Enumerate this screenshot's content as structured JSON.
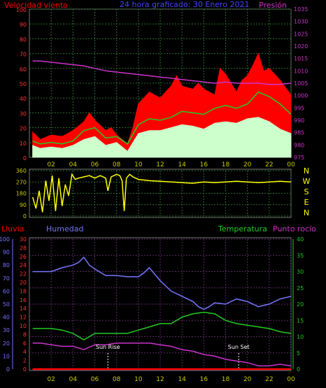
{
  "header": {
    "left_title": "Velocidad viento",
    "center_title": "24 hora graficado:  30 Enero 2021",
    "right_title": "Presión"
  },
  "colors": {
    "background": "#000000",
    "wind_gust": "#ff0000",
    "wind_speed": "#22cc22",
    "wind_avg": "#ccffcc",
    "pressure": "#cc33cc",
    "direction": "#ffff00",
    "humidity": "#7777ff",
    "temperature": "#22cc22",
    "dewpoint": "#cc33cc",
    "rain": "#ff0000",
    "grid_green": "#2e6e2e",
    "grid_purple": "#5a2a66",
    "axis_red": "#ff3333",
    "axis_blue": "#7777ff",
    "axis_green": "#22cc22"
  },
  "chart_data": [
    {
      "type": "line",
      "name": "wind_pressure",
      "x_ticks": [
        "02",
        "04",
        "06",
        "08",
        "10",
        "12",
        "14",
        "16",
        "18",
        "20",
        "22",
        "00"
      ],
      "x_range_hours": [
        0,
        24
      ],
      "left_axis": {
        "label": "Velocidad viento",
        "ticks": [
          "0",
          "10",
          "20",
          "30",
          "40",
          "50",
          "60",
          "70",
          "80",
          "90",
          "100"
        ],
        "ylim": [
          0,
          100
        ]
      },
      "right_axis": {
        "label": "Presión",
        "ticks": [
          "975",
          "980",
          "985",
          "990",
          "995",
          "1000",
          "1005",
          "1010",
          "1015",
          "1020",
          "1025",
          "1030",
          "1035"
        ],
        "ylim": [
          975,
          1035
        ]
      },
      "series": [
        {
          "key": "gust",
          "x": [
            0.3,
            1.0,
            2.0,
            3.0,
            4.0,
            5.0,
            5.5,
            6.0,
            7.0,
            7.5,
            8.0,
            9.0,
            9.5,
            10.0,
            11.0,
            12.0,
            13.0,
            13.5,
            14.0,
            15.0,
            15.5,
            16.0,
            17.0,
            17.5,
            18.0,
            19.0,
            19.5,
            20.0,
            20.5,
            21.0,
            21.5,
            22.0,
            23.0,
            24.0
          ],
          "values": [
            17,
            12,
            15,
            14,
            18,
            24,
            30,
            25,
            18,
            20,
            15,
            9,
            20,
            36,
            44,
            40,
            48,
            55,
            48,
            46,
            50,
            46,
            42,
            60,
            56,
            44,
            52,
            55,
            62,
            70,
            58,
            60,
            52,
            42
          ]
        },
        {
          "key": "speed",
          "x": [
            0.3,
            1.0,
            2.0,
            3.0,
            4.0,
            5.0,
            6.0,
            7.0,
            8.0,
            9.0,
            10.0,
            11.0,
            12.0,
            13.0,
            14.0,
            15.0,
            16.0,
            17.0,
            18.0,
            19.0,
            20.0,
            21.0,
            22.0,
            23.0,
            24.0
          ],
          "values": [
            11,
            9,
            10,
            9,
            11,
            18,
            20,
            13,
            14,
            9,
            22,
            26,
            25,
            27,
            31,
            30,
            29,
            33,
            35,
            33,
            36,
            44,
            41,
            36,
            29
          ]
        },
        {
          "key": "average",
          "x": [
            0.3,
            1.0,
            2.0,
            3.0,
            4.0,
            5.0,
            6.0,
            7.0,
            8.0,
            9.0,
            10.0,
            11.0,
            12.0,
            13.0,
            14.0,
            15.0,
            16.0,
            17.0,
            18.0,
            19.0,
            20.0,
            21.0,
            22.0,
            23.0,
            24.0
          ],
          "values": [
            8,
            6,
            7,
            6,
            8,
            12,
            14,
            8,
            10,
            4,
            16,
            18,
            18,
            20,
            22,
            21,
            19,
            23,
            24,
            23,
            26,
            27,
            24,
            19,
            16
          ]
        },
        {
          "key": "pressure",
          "axis": "right",
          "x": [
            0.3,
            1.0,
            2.0,
            3.0,
            4.0,
            5.0,
            6.0,
            7.0,
            8.0,
            9.0,
            10.0,
            11.0,
            12.0,
            13.0,
            14.0,
            15.0,
            16.0,
            17.0,
            18.0,
            19.0,
            20.0,
            21.0,
            22.0,
            23.0,
            24.0
          ],
          "values": [
            1014,
            1014,
            1013.5,
            1013,
            1012.5,
            1012,
            1011,
            1010,
            1009.5,
            1009,
            1008.5,
            1008,
            1007.5,
            1007,
            1006.5,
            1006,
            1005.5,
            1005,
            1005.5,
            1005,
            1005,
            1005,
            1004.5,
            1004.5,
            1005
          ]
        }
      ]
    },
    {
      "type": "line",
      "name": "wind_direction",
      "y_ticks": [
        "360",
        "270",
        "180",
        "90",
        "0"
      ],
      "ylim": [
        0,
        360
      ],
      "compass_labels": [
        "N",
        "W",
        "S",
        "E",
        "N"
      ],
      "series": [
        {
          "key": "direction",
          "x": [
            0.3,
            0.6,
            0.9,
            1.2,
            1.5,
            1.8,
            2.1,
            2.4,
            2.7,
            3.0,
            3.3,
            3.6,
            3.9,
            4.2,
            4.5,
            5.0,
            5.5,
            6.0,
            6.5,
            7.0,
            7.2,
            7.5,
            8.0,
            8.3,
            8.5,
            8.7,
            8.9,
            9.2,
            9.5,
            10.0,
            11.0,
            12.0,
            13.0,
            14.0,
            15.0,
            16.0,
            17.0,
            18.0,
            19.0,
            20.0,
            21.0,
            22.0,
            23.0,
            24.0
          ],
          "values": [
            150,
            60,
            200,
            30,
            280,
            120,
            320,
            40,
            300,
            80,
            250,
            160,
            330,
            290,
            300,
            310,
            320,
            300,
            320,
            300,
            200,
            310,
            330,
            320,
            280,
            40,
            300,
            330,
            310,
            290,
            280,
            275,
            270,
            265,
            260,
            270,
            265,
            270,
            275,
            270,
            265,
            270,
            275,
            270
          ]
        }
      ]
    },
    {
      "type": "line",
      "name": "humidity_temperature",
      "headers": [
        "Lluvia",
        "Humedad",
        "Temperatura",
        "Punto rocío"
      ],
      "left_axis_humidity": {
        "ticks": [
          "0",
          "10",
          "20",
          "30",
          "40",
          "50",
          "60",
          "70",
          "80",
          "90",
          "100"
        ],
        "ylim": [
          0,
          100
        ]
      },
      "left_axis_rain": {
        "ticks": [
          "0",
          "2",
          "4",
          "6",
          "8",
          "10",
          "12",
          "14",
          "16",
          "18",
          "20",
          "22",
          "24",
          "26",
          "28",
          "30"
        ],
        "ylim": [
          0,
          30
        ]
      },
      "right_axis_temp": {
        "ticks": [
          "0",
          "5",
          "10",
          "15",
          "20",
          "25",
          "30",
          "35",
          "40"
        ],
        "ylim": [
          0,
          40
        ]
      },
      "annotations": [
        {
          "label": "Sun Rise",
          "hour": 7.2
        },
        {
          "label": "Sun Set",
          "hour": 19.2
        }
      ],
      "series": [
        {
          "key": "humidity",
          "axis": "humidity",
          "x": [
            0.3,
            1.0,
            2.0,
            3.0,
            4.0,
            4.5,
            5.0,
            5.5,
            6.0,
            7.0,
            8.0,
            9.0,
            10.0,
            10.5,
            11.0,
            12.0,
            13.0,
            14.0,
            15.0,
            15.5,
            16.0,
            16.5,
            17.0,
            18.0,
            19.0,
            20.0,
            21.0,
            22.0,
            23.0,
            24.0
          ],
          "values": [
            75,
            75,
            75,
            78,
            80,
            82,
            86,
            80,
            77,
            72,
            72,
            71,
            71,
            74,
            78,
            68,
            60,
            56,
            52,
            48,
            46,
            48,
            51,
            50,
            54,
            52,
            48,
            50,
            54,
            56
          ]
        },
        {
          "key": "temperature",
          "axis": "temp",
          "x": [
            0.3,
            1.0,
            2.0,
            3.0,
            4.0,
            5.0,
            6.0,
            7.0,
            8.0,
            9.0,
            10.0,
            11.0,
            12.0,
            13.0,
            14.0,
            15.0,
            16.0,
            17.0,
            18.0,
            19.0,
            20.0,
            21.0,
            22.0,
            23.0,
            24.0
          ],
          "values": [
            12.5,
            12.5,
            12.5,
            12,
            11,
            9,
            11,
            11,
            11,
            11,
            12,
            13,
            14,
            14,
            16,
            17,
            17.5,
            17,
            15,
            14,
            13.5,
            13,
            12.5,
            11.5,
            11
          ]
        },
        {
          "key": "dewpoint",
          "axis": "temp",
          "x": [
            0.3,
            1.0,
            2.0,
            3.0,
            4.0,
            5.0,
            6.0,
            7.0,
            8.0,
            9.0,
            10.0,
            11.0,
            12.0,
            13.0,
            14.0,
            15.0,
            16.0,
            17.0,
            18.0,
            19.0,
            20.0,
            21.0,
            22.0,
            23.0,
            24.0
          ],
          "values": [
            8,
            8,
            7.5,
            7,
            7,
            6,
            7.5,
            7.5,
            8,
            8,
            8,
            8,
            7.5,
            7,
            6,
            5.5,
            4.5,
            4,
            3,
            2.5,
            2,
            1,
            1,
            1.5,
            1
          ]
        },
        {
          "key": "rain",
          "axis": "rain",
          "x": [
            0.3,
            24.0
          ],
          "values": [
            0,
            0
          ]
        }
      ]
    }
  ]
}
